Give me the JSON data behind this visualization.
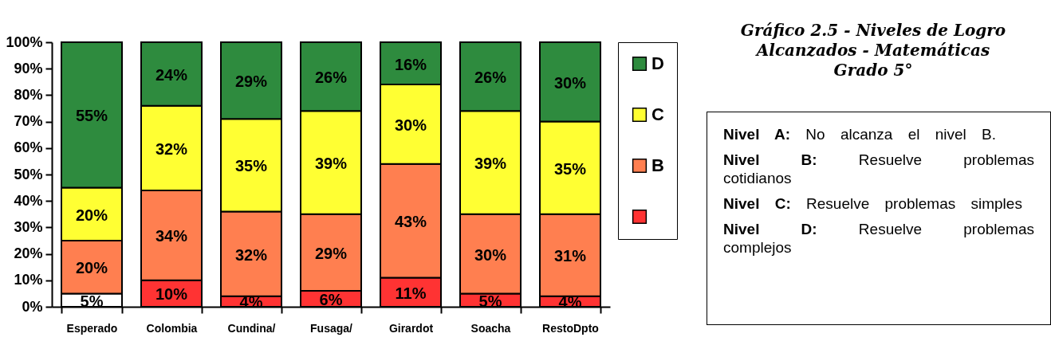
{
  "chart_data": {
    "type": "bar",
    "stacked": true,
    "title": "Gráfico 2.5 - Niveles de Logro Alcanzados - Matemáticas Grado 5°",
    "categories": [
      "Esperado",
      "Colombia",
      "Cundina/",
      "Fusaga/",
      "Girardot",
      "Soacha",
      "RestoDpto"
    ],
    "series": [
      {
        "color": "#ff3333",
        "colors": [
          "#ffffff",
          "#ff3333",
          "#ff3333",
          "#ff3333",
          "#ff3333",
          "#ff3333",
          "#ff3333"
        ],
        "values": [
          5,
          10,
          4,
          6,
          11,
          5,
          4
        ],
        "value_labels": [
          "5%",
          "10%",
          "4%",
          "6%",
          "11%",
          "5%",
          "4%"
        ]
      },
      {
        "name": "B",
        "color": "#ff7f50",
        "values": [
          20,
          34,
          32,
          29,
          43,
          30,
          31
        ],
        "value_labels": [
          "20%",
          "34%",
          "32%",
          "29%",
          "43%",
          "30%",
          "31%"
        ]
      },
      {
        "name": "C",
        "color": "#ffff33",
        "values": [
          20,
          32,
          35,
          39,
          30,
          39,
          35
        ],
        "value_labels": [
          "20%",
          "32%",
          "35%",
          "39%",
          "30%",
          "39%",
          "35%"
        ]
      },
      {
        "name": "D",
        "color": "#2e8b3e",
        "values": [
          55,
          24,
          29,
          26,
          16,
          26,
          30
        ],
        "value_labels": [
          "55%",
          "24%",
          "29%",
          "26%",
          "16%",
          "26%",
          "30%"
        ]
      }
    ],
    "ylim": [
      0,
      100
    ],
    "yticks": [
      {
        "value": 0,
        "label": "0%"
      },
      {
        "value": 10,
        "label": "10%"
      },
      {
        "value": 20,
        "label": "20%"
      },
      {
        "value": 30,
        "label": "30%"
      },
      {
        "value": 40,
        "label": "40%"
      },
      {
        "value": 50,
        "label": "50%"
      },
      {
        "value": 60,
        "label": "60%"
      },
      {
        "value": 70,
        "label": "70%"
      },
      {
        "value": 80,
        "label": "80%"
      },
      {
        "value": 90,
        "label": "90%"
      },
      {
        "value": 100,
        "label": "100%"
      }
    ],
    "grid": false,
    "legend": "right",
    "annotations": [
      "Nivel A: No alcanza el nivel B.",
      "Nivel B: Resuelve problemas cotidianos",
      "Nivel C: Resuelve problemas simples",
      "Nivel D: Resuelve problemas complejos"
    ]
  }
}
